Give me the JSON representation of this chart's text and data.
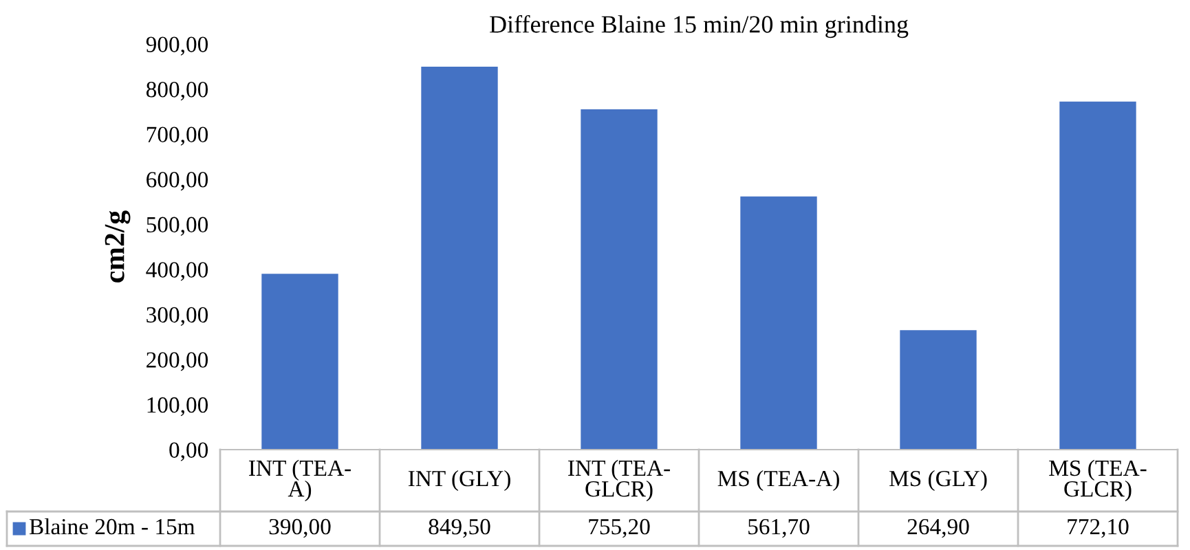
{
  "chart_data": {
    "type": "bar",
    "title": "Difference Blaine 15 min/20 min grinding",
    "ylabel": "cm2/g",
    "categories": [
      "INT (TEA-A)",
      "INT (GLY)",
      "INT (TEA-GLCR)",
      "MS (TEA-A)",
      "MS (GLY)",
      "MS (TEA-GLCR)"
    ],
    "series": [
      {
        "name": "Blaine 20m - 15m",
        "color": "#4472c4",
        "values": [
          390.0,
          849.5,
          755.2,
          561.7,
          264.9,
          772.1
        ],
        "value_labels": [
          "390,00",
          "849,50",
          "755,20",
          "561,70",
          "264,90",
          "772,10"
        ]
      }
    ],
    "ylim": [
      0,
      900
    ],
    "yticks": [
      {
        "value": 0,
        "label": "0,00"
      },
      {
        "value": 100,
        "label": "100,00"
      },
      {
        "value": 200,
        "label": "200,00"
      },
      {
        "value": 300,
        "label": "300,00"
      },
      {
        "value": 400,
        "label": "400,00"
      },
      {
        "value": 500,
        "label": "500,00"
      },
      {
        "value": 600,
        "label": "600,00"
      },
      {
        "value": 700,
        "label": "700,00"
      },
      {
        "value": 800,
        "label": "800,00"
      },
      {
        "value": 900,
        "label": "900,00"
      }
    ]
  }
}
